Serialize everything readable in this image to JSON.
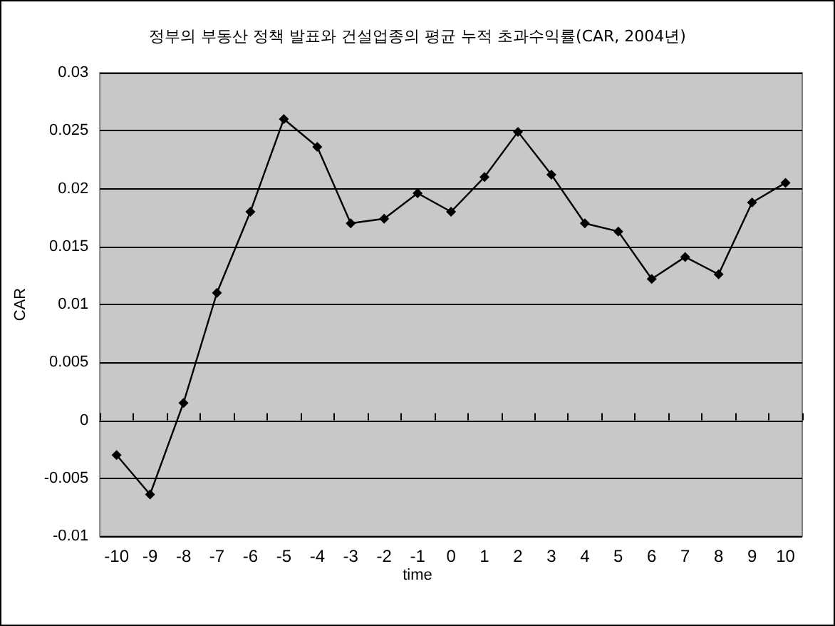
{
  "chart_data": {
    "type": "line",
    "title": "정부의 부동산 정책 발표와 건설업종의 평균 누적 초과수익률(CAR, 2004년)",
    "xlabel": "time",
    "ylabel": "CAR",
    "categories": [
      "-10",
      "-9",
      "-8",
      "-7",
      "-6",
      "-5",
      "-4",
      "-3",
      "-2",
      "-1",
      "0",
      "1",
      "2",
      "3",
      "4",
      "5",
      "6",
      "7",
      "8",
      "9",
      "10"
    ],
    "series": [
      {
        "color": "#000000",
        "values": [
          -0.003,
          -0.0064,
          0.0015,
          0.011,
          0.018,
          0.026,
          0.0236,
          0.017,
          0.0174,
          0.0196,
          0.018,
          0.021,
          0.0249,
          0.0212,
          0.017,
          0.0163,
          0.0122,
          0.0141,
          0.0126,
          0.0188,
          0.0205
        ]
      }
    ],
    "ylim": [
      -0.01,
      0.03
    ],
    "yticks": [
      -0.01,
      -0.005,
      0,
      0.005,
      0.01,
      0.015,
      0.02,
      0.025,
      0.03
    ],
    "grid": "y",
    "marker": "diamond",
    "line_style": "solid"
  }
}
